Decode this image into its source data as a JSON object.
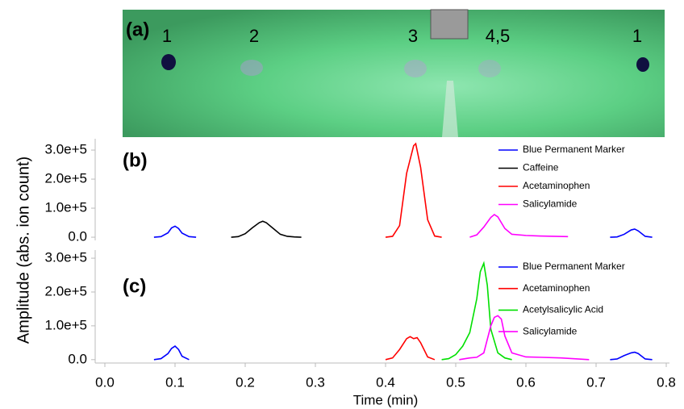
{
  "photo": {
    "label": "(a)",
    "spots": [
      "1",
      "2",
      "3",
      "4,5",
      "1"
    ]
  },
  "ylabel": "Amplitude (abs. ion count)",
  "chart_data": [
    {
      "type": "line",
      "label": "(b)",
      "legend": "upper right",
      "xlim": [
        0,
        0.8
      ],
      "ylim": [
        -11000,
        339000
      ],
      "yticks": [
        {
          "value": 0,
          "label": "0.0"
        },
        {
          "value": 100000,
          "label": "1.0e+5"
        },
        {
          "value": 200000,
          "label": "2.0e+5"
        },
        {
          "value": 300000,
          "label": "3.0e+5"
        }
      ],
      "series": [
        {
          "name": "Blue Permanent Marker",
          "color": "#0000ff",
          "x": [
            0.07,
            0.08,
            0.09,
            0.095,
            0.1,
            0.105,
            0.11,
            0.12,
            0.13,
            0.425,
            0.72,
            0.73,
            0.74,
            0.75,
            0.755,
            0.76,
            0.77,
            0.78
          ],
          "values": [
            0,
            2000,
            15000,
            32000,
            38000,
            30000,
            14000,
            2000,
            0,
            null,
            0,
            1000,
            10000,
            25000,
            28000,
            22000,
            3000,
            0
          ]
        },
        {
          "name": "Caffeine",
          "color": "#000000",
          "x": [
            0.18,
            0.19,
            0.2,
            0.21,
            0.22,
            0.225,
            0.23,
            0.24,
            0.25,
            0.26,
            0.27,
            0.28
          ],
          "values": [
            0,
            2000,
            12000,
            32000,
            50000,
            55000,
            50000,
            30000,
            10000,
            3000,
            1000,
            0
          ]
        },
        {
          "name": "Acetaminophen",
          "color": "#ff0000",
          "x": [
            0.4,
            0.41,
            0.42,
            0.43,
            0.44,
            0.443,
            0.45,
            0.46,
            0.47,
            0.48
          ],
          "values": [
            0,
            3000,
            40000,
            220000,
            315000,
            322000,
            240000,
            60000,
            4000,
            0
          ]
        },
        {
          "name": "Salicylamide",
          "color": "#ff00ff",
          "x": [
            0.52,
            0.53,
            0.54,
            0.55,
            0.555,
            0.56,
            0.57,
            0.58,
            0.6,
            0.62,
            0.64,
            0.66
          ],
          "values": [
            0,
            8000,
            35000,
            68000,
            78000,
            70000,
            30000,
            10000,
            6000,
            4000,
            3000,
            2000
          ]
        }
      ]
    },
    {
      "type": "line",
      "label": "(c)",
      "legend": "upper right",
      "xlabel": "Time (min)",
      "xlim": [
        0,
        0.8
      ],
      "ylim": [
        -10000,
        324000
      ],
      "xticks": [
        {
          "value": 0,
          "label": "0.0"
        },
        0.1,
        0.2,
        0.3,
        0.4,
        0.5,
        0.6,
        0.7,
        0.8
      ],
      "yticks": [
        {
          "value": 0,
          "label": "0.0"
        },
        {
          "value": 100000,
          "label": "1.0e+5"
        },
        {
          "value": 200000,
          "label": "2.0e+5"
        },
        {
          "value": 300000,
          "label": "3.0e+5"
        }
      ],
      "series": [
        {
          "name": "Blue Permanent Marker",
          "color": "#0000ff",
          "x": [
            0.07,
            0.08,
            0.09,
            0.095,
            0.1,
            0.105,
            0.11,
            0.12,
            0.425,
            0.72,
            0.73,
            0.74,
            0.75,
            0.755,
            0.76,
            0.77,
            0.78
          ],
          "values": [
            0,
            3000,
            18000,
            33000,
            40000,
            30000,
            10000,
            0,
            null,
            0,
            2000,
            12000,
            20000,
            22000,
            18000,
            2000,
            0
          ]
        },
        {
          "name": "Acetaminophen",
          "color": "#ff0000",
          "x": [
            0.4,
            0.41,
            0.42,
            0.43,
            0.435,
            0.44,
            0.445,
            0.45,
            0.46,
            0.47
          ],
          "values": [
            0,
            5000,
            30000,
            62000,
            68000,
            62000,
            65000,
            50000,
            8000,
            0
          ]
        },
        {
          "name": "Acetylsalicylic Acid",
          "color": "#00e000",
          "x": [
            0.48,
            0.49,
            0.5,
            0.51,
            0.52,
            0.53,
            0.535,
            0.54,
            0.545,
            0.55,
            0.56,
            0.57,
            0.58
          ],
          "values": [
            0,
            3000,
            15000,
            40000,
            80000,
            180000,
            260000,
            285000,
            220000,
            90000,
            20000,
            5000,
            0
          ]
        },
        {
          "name": "Salicylamide",
          "color": "#ff00ff",
          "x": [
            0.505,
            0.52,
            0.53,
            0.54,
            0.55,
            0.555,
            0.56,
            0.565,
            0.57,
            0.58,
            0.6,
            0.62,
            0.65,
            0.69
          ],
          "values": [
            0,
            5000,
            7000,
            20000,
            100000,
            125000,
            130000,
            120000,
            70000,
            20000,
            8000,
            7000,
            5000,
            0
          ]
        }
      ]
    }
  ]
}
